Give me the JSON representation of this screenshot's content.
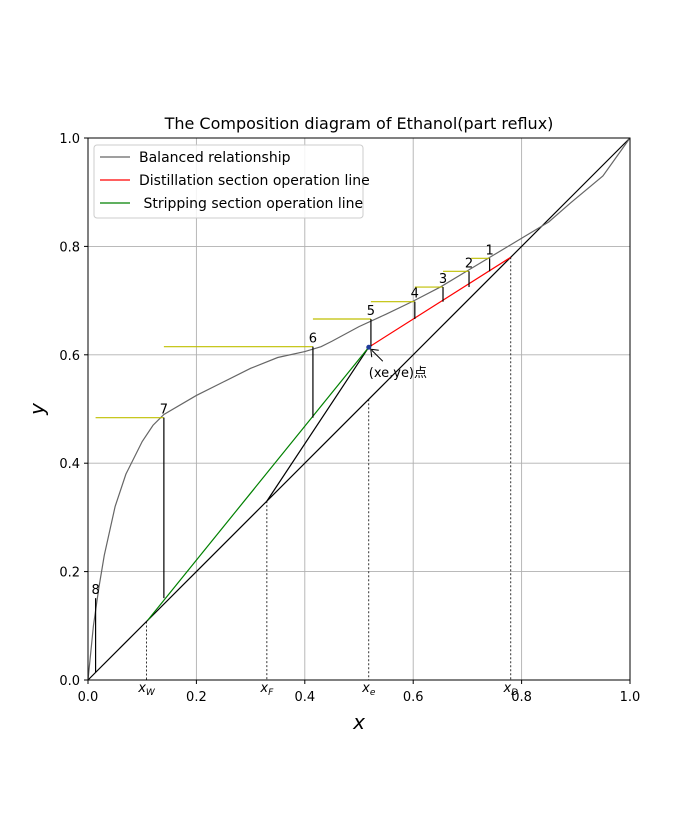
{
  "chart_data": {
    "type": "line",
    "title": "The Composition diagram of Ethanol(part reflux)",
    "xlabel": "x",
    "ylabel": "y",
    "xlim": [
      0.0,
      1.0
    ],
    "ylim": [
      0.0,
      1.0
    ],
    "grid": true,
    "legend_position": "top-left",
    "x_ticks": [
      0.0,
      0.2,
      0.4,
      0.6,
      0.8,
      1.0
    ],
    "y_ticks": [
      0.0,
      0.2,
      0.4,
      0.6,
      0.8,
      1.0
    ],
    "x_tick_labels": [
      "0.0",
      "0.2",
      "0.4",
      "0.6",
      "0.8",
      "1.0"
    ],
    "y_tick_labels": [
      "0.0",
      "0.2",
      "0.4",
      "0.6",
      "0.8",
      "1.0"
    ],
    "series": [
      {
        "name": "Balanced relationship",
        "color": "#666666",
        "x": [
          0.0,
          0.005,
          0.01,
          0.02,
          0.03,
          0.05,
          0.07,
          0.1,
          0.12,
          0.14,
          0.2,
          0.25,
          0.3,
          0.35,
          0.4,
          0.43,
          0.45,
          0.5,
          0.55,
          0.6,
          0.65,
          0.7,
          0.75,
          0.8,
          0.85,
          0.89,
          0.95,
          1.0
        ],
        "y": [
          0.0,
          0.05,
          0.1,
          0.17,
          0.23,
          0.32,
          0.38,
          0.44,
          0.47,
          0.49,
          0.525,
          0.55,
          0.575,
          0.595,
          0.606,
          0.615,
          0.625,
          0.652,
          0.675,
          0.699,
          0.725,
          0.755,
          0.785,
          0.815,
          0.845,
          0.88,
          0.93,
          1.0
        ]
      },
      {
        "name": "Distillation section operation line",
        "color": "#ff0000",
        "x": [
          0.518,
          0.78
        ],
        "y": [
          0.614,
          0.78
        ]
      },
      {
        "name": " Stripping section operation line",
        "color": "#008000",
        "x": [
          0.11,
          0.518
        ],
        "y": [
          0.11,
          0.614
        ]
      }
    ],
    "diagonal": {
      "color": "#000000",
      "x": [
        0.0,
        1.0
      ],
      "y": [
        0.0,
        1.0
      ]
    },
    "q_line": {
      "color": "#000000",
      "x": [
        0.33,
        0.518
      ],
      "y": [
        0.33,
        0.614
      ]
    },
    "steps": [
      {
        "label": "1",
        "x_eq": 0.741,
        "x_next": 0.707,
        "y": 0.778
      },
      {
        "label": "2",
        "x_eq": 0.703,
        "x_next": 0.655,
        "y": 0.754
      },
      {
        "label": "3",
        "x_eq": 0.655,
        "x_next": 0.603,
        "y": 0.725
      },
      {
        "label": "4",
        "x_eq": 0.603,
        "x_next": 0.522,
        "y": 0.698
      },
      {
        "label": "5",
        "x_eq": 0.522,
        "x_next": 0.415,
        "y": 0.666
      },
      {
        "label": "6",
        "x_eq": 0.415,
        "x_next": 0.14,
        "y": 0.615
      },
      {
        "label": "7",
        "x_eq": 0.14,
        "x_next": 0.014,
        "y": 0.484
      },
      {
        "label": "8",
        "x_eq": 0.014,
        "x_next": 0.014,
        "y": 0.151
      }
    ],
    "step_colors": {
      "horizontal": "#bfbf00",
      "vertical": "#000000"
    },
    "reference_lines": [
      {
        "label_main": "x",
        "label_sub": "W",
        "x": 0.108
      },
      {
        "label_main": "x",
        "label_sub": "F",
        "x": 0.33
      },
      {
        "label_main": "x",
        "label_sub": "e",
        "x": 0.518
      },
      {
        "label_main": "x",
        "label_sub": "D",
        "x": 0.78
      }
    ],
    "intersection_point": {
      "x": 0.518,
      "y": 0.614,
      "color": "#1f3b99"
    },
    "annotations": [
      {
        "text": "(xe,ye)点",
        "x": 0.518,
        "y": 0.614
      }
    ]
  }
}
